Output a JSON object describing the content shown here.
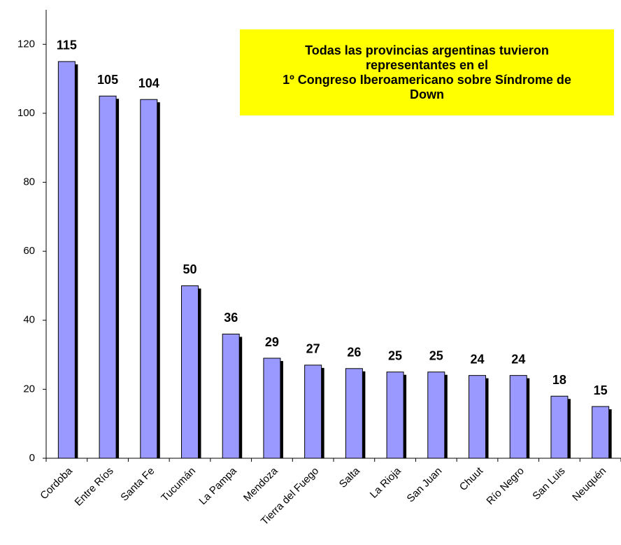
{
  "chart_data": {
    "type": "bar",
    "title": [
      "Todas las provincias argentinas tuvieron",
      "representantes en el",
      "1º Congreso Iberoamericano sobre Síndrome de",
      "Down"
    ],
    "categories": [
      "Cordoba",
      "Entre Ríos",
      "Santa Fe",
      "Tucumán",
      "La Pampa",
      "Mendoza",
      "Tierra del Fuego",
      "Salta",
      "La Rioja",
      "San Juan",
      "Chuut",
      "Río Negro",
      "San Luis",
      "Neuquén"
    ],
    "values": [
      115,
      105,
      104,
      50,
      36,
      29,
      27,
      26,
      25,
      25,
      24,
      24,
      18,
      15
    ],
    "color": "#9999ff",
    "ylim": [
      0,
      130
    ],
    "yticks": [
      0,
      20,
      40,
      60,
      80,
      100,
      120
    ],
    "grid": false
  }
}
